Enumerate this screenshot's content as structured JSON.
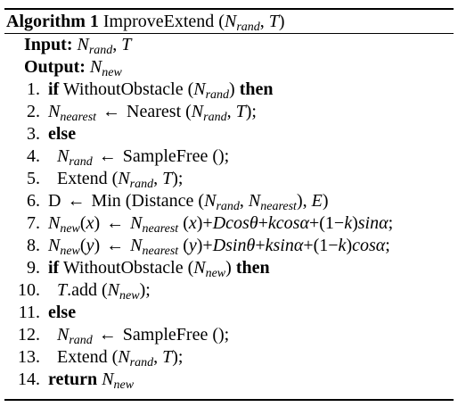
{
  "algorithm": {
    "label": "Algorithm 1",
    "name": "ImproveExtend",
    "params": "(N_rand, T)"
  },
  "header": [
    {
      "kw": "Input:",
      "text": "N_rand, T"
    },
    {
      "kw": "Output:",
      "text": "N_new"
    }
  ],
  "lines": [
    {
      "num": "1.",
      "text": "if WithoutObstacle (N_rand) then"
    },
    {
      "num": "2.",
      "text": "N_nearest ← Nearest (N_rand, T);"
    },
    {
      "num": "3.",
      "text": "else"
    },
    {
      "num": "4.",
      "text": "N_rand ← SampleFree ();"
    },
    {
      "num": "5.",
      "text": "Extend (N_rand, T);"
    },
    {
      "num": "6.",
      "text": "D ← Min (Distance (N_rand, N_nearest), E)"
    },
    {
      "num": "7.",
      "text": "N_new(x) ← N_nearest (x)+Dcos θ+kcos α+(1−k)sin α;"
    },
    {
      "num": "8.",
      "text": "N_new(y) ← N_nearest (y)+Dsin θ+ksin α+(1−k)cos α;"
    },
    {
      "num": "9.",
      "text": "if WithoutObstacle (N_new) then"
    },
    {
      "num": "10.",
      "text": "T.add (N_new);"
    },
    {
      "num": "11.",
      "text": "else"
    },
    {
      "num": "12.",
      "text": "N_rand ← SampleFree ();"
    },
    {
      "num": "13.",
      "text": "Extend (N_rand, T);"
    },
    {
      "num": "14.",
      "text": "return N_new"
    }
  ]
}
